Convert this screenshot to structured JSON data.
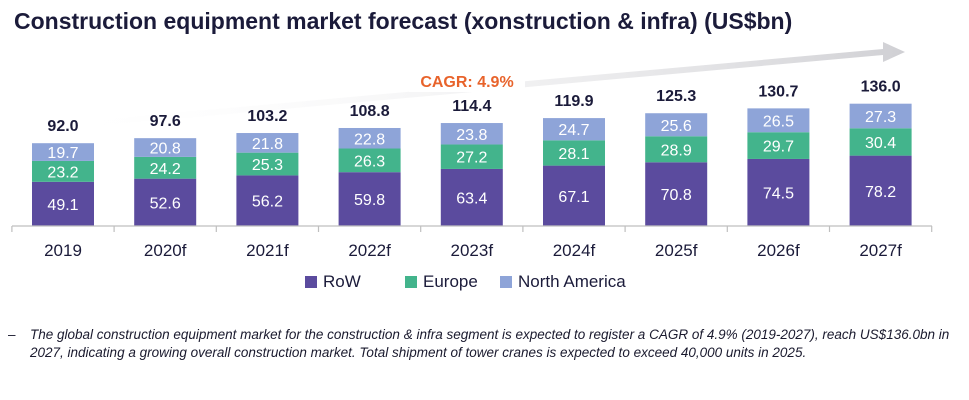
{
  "title": "Construction equipment market forecast (xonstruction & infra) (US$bn)",
  "chart_data": {
    "type": "bar",
    "stacked": true,
    "categories": [
      "2019",
      "2020f",
      "2021f",
      "2022f",
      "2023f",
      "2024f",
      "2025f",
      "2026f",
      "2027f"
    ],
    "series": [
      {
        "name": "RoW",
        "color": "#5b4b9e",
        "values": [
          49.1,
          52.6,
          56.2,
          59.8,
          63.4,
          67.1,
          70.8,
          74.5,
          78.2
        ]
      },
      {
        "name": "Europe",
        "color": "#43b48c",
        "values": [
          23.2,
          24.2,
          25.3,
          26.3,
          27.2,
          28.1,
          28.9,
          29.7,
          30.4
        ]
      },
      {
        "name": "North America",
        "color": "#8ea4d8",
        "values": [
          19.7,
          20.8,
          21.8,
          22.8,
          23.8,
          24.7,
          25.6,
          26.5,
          27.3
        ]
      }
    ],
    "totals": [
      "92.0",
      "97.6",
      "103.2",
      "108.8",
      "114.4",
      "119.9",
      "125.3",
      "130.7",
      "136.0"
    ],
    "segment_labels": [
      [
        "49.1",
        "52.6",
        "56.2",
        "59.8",
        "63.4",
        "67.1",
        "70.8",
        "74.5",
        "78.2"
      ],
      [
        "23.2",
        "24.2",
        "25.3",
        "26.3",
        "27.2",
        "28.1",
        "28.9",
        "29.7",
        "30.4"
      ],
      [
        "19.7",
        "20.8",
        "21.8",
        "22.8",
        "23.8",
        "24.7",
        "25.6",
        "26.5",
        "27.3"
      ]
    ],
    "cagr_label": "CAGR: 4.9%",
    "cagr_color": "#e8632b",
    "legend_position": "bottom"
  },
  "footnote": {
    "bullet": "–",
    "text": "The global construction equipment market for the construction & infra segment is expected to register a CAGR of 4.9% (2019-2027), reach US$136.0bn in 2027, indicating a growing overall construction market. Total shipment of tower cranes is expected to exceed 40,000 units in 2025."
  }
}
